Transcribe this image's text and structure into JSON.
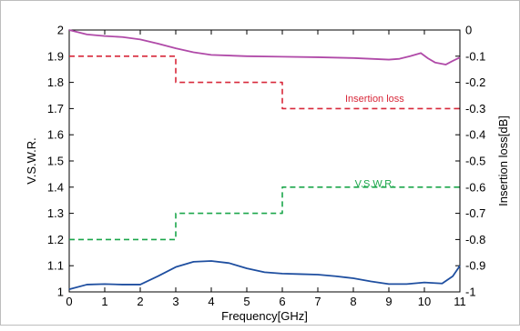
{
  "chart_data": {
    "type": "line",
    "xlabel": "Frequency[GHz]",
    "ylabel_left": "V.S.W.R.",
    "ylabel_right": "Insertion loss[dB]",
    "xlim": [
      0,
      11
    ],
    "ylim_left": [
      1,
      2
    ],
    "ylim_right": [
      -1,
      0
    ],
    "x_ticks": [
      "0",
      "1",
      "2",
      "3",
      "4",
      "5",
      "6",
      "7",
      "8",
      "9",
      "10",
      "11"
    ],
    "y_left_ticks": [
      "1",
      "1.1",
      "1.2",
      "1.3",
      "1.4",
      "1.5",
      "1.6",
      "1.7",
      "1.8",
      "1.9",
      "2"
    ],
    "y_right_ticks": [
      "0",
      "-0.1",
      "-0.2",
      "-0.3",
      "-0.4",
      "-0.5",
      "-0.6",
      "-0.7",
      "-0.8",
      "-0.9",
      "-1"
    ],
    "grid": false,
    "series": [
      {
        "name": "Insertion loss",
        "axis": "right",
        "style": "dashed",
        "color": "#d8283a",
        "x": [
          0,
          3,
          3,
          6,
          6,
          11
        ],
        "values": [
          -0.1,
          -0.1,
          -0.2,
          -0.2,
          -0.3,
          -0.3
        ]
      },
      {
        "name": "V.S.W.R.",
        "axis": "left",
        "style": "dashed",
        "color": "#1aa64a",
        "x": [
          0,
          3,
          3,
          6,
          6,
          11
        ],
        "values": [
          1.2,
          1.2,
          1.3,
          1.3,
          1.4,
          1.4
        ]
      },
      {
        "axis": "right",
        "style": "solid",
        "color": "#b04aa8",
        "x": [
          0,
          0.5,
          1,
          1.5,
          2,
          2.5,
          3,
          3.5,
          4,
          5,
          6,
          7,
          8,
          8.5,
          9,
          9.3,
          9.6,
          9.9,
          10.1,
          10.3,
          10.6,
          10.8,
          11
        ],
        "values": [
          0,
          -0.017,
          -0.023,
          -0.027,
          -0.036,
          -0.052,
          -0.07,
          -0.085,
          -0.095,
          -0.1,
          -0.102,
          -0.104,
          -0.107,
          -0.11,
          -0.113,
          -0.11,
          -0.1,
          -0.088,
          -0.108,
          -0.124,
          -0.132,
          -0.118,
          -0.105
        ]
      },
      {
        "axis": "left",
        "style": "solid",
        "color": "#1f4fa0",
        "x": [
          0,
          0.5,
          1,
          1.5,
          2,
          2.5,
          3,
          3.5,
          4,
          4.5,
          5,
          5.5,
          6,
          6.5,
          7,
          7.5,
          8,
          8.5,
          9,
          9.5,
          10,
          10.5,
          10.8,
          11
        ],
        "values": [
          1.01,
          1.028,
          1.03,
          1.028,
          1.028,
          1.06,
          1.095,
          1.115,
          1.118,
          1.11,
          1.09,
          1.075,
          1.07,
          1.068,
          1.066,
          1.06,
          1.052,
          1.04,
          1.03,
          1.03,
          1.036,
          1.032,
          1.06,
          1.1
        ]
      }
    ],
    "annotations": [
      {
        "text": "Insertion loss",
        "color": "#d8283a",
        "x": 8.6,
        "y_right": -0.26
      },
      {
        "text": "V.S.W.R.",
        "color": "#1aa64a",
        "x": 8.6,
        "y_left": 1.415
      }
    ]
  }
}
